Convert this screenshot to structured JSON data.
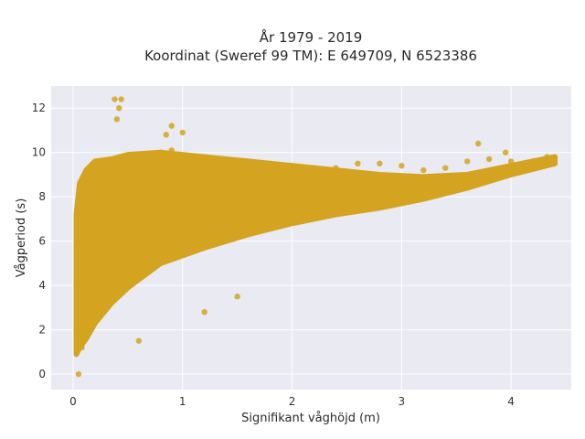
{
  "chart_data": {
    "type": "scatter",
    "title_line1": "År 1979 - 2019",
    "title_line2": "Koordinat (Sweref 99 TM): E 649709, N 6523386",
    "xlabel": "Signifikant våghöjd (m)",
    "ylabel": "Vågperiod (s)",
    "xlim": [
      -0.2,
      4.55
    ],
    "ylim": [
      -0.7,
      13.0
    ],
    "xticks": [
      "0",
      "1",
      "2",
      "3",
      "4"
    ],
    "yticks": [
      "0",
      "2",
      "4",
      "6",
      "8",
      "10",
      "12"
    ],
    "grid": true,
    "marker_color": "#D4A420",
    "background": "#E9EAF2",
    "series": [
      {
        "x": [
          0.05,
          0.08,
          0.1,
          0.12,
          0.15,
          0.2,
          0.25,
          0.3,
          0.35,
          0.4,
          0.5,
          0.6,
          0.7,
          0.8,
          0.9,
          1.0,
          1.1,
          1.2,
          1.4,
          1.6,
          1.8,
          2.0,
          2.2,
          2.4,
          2.6,
          2.8,
          3.0,
          3.2,
          3.4,
          3.6,
          3.8,
          4.0,
          4.2,
          4.33,
          0.38,
          0.42,
          0.4,
          0.44,
          0.9,
          0.85,
          1.0,
          0.6,
          1.5,
          1.2,
          3.7,
          3.95,
          0.06,
          0.18,
          0.5,
          0.3
        ],
        "y": [
          0.0,
          1.2,
          2.0,
          3.5,
          5.0,
          6.5,
          7.5,
          8.0,
          8.5,
          9.0,
          9.2,
          9.5,
          9.8,
          10.0,
          10.1,
          9.8,
          9.7,
          9.6,
          9.5,
          9.6,
          9.5,
          9.4,
          9.3,
          9.3,
          9.5,
          9.5,
          9.4,
          9.2,
          9.3,
          9.6,
          9.7,
          9.6,
          9.6,
          9.8,
          12.4,
          12.0,
          11.5,
          12.4,
          11.2,
          10.8,
          10.9,
          1.5,
          3.5,
          2.8,
          10.4,
          10.0,
          4.0,
          2.5,
          5.5,
          6.0
        ]
      }
    ]
  }
}
